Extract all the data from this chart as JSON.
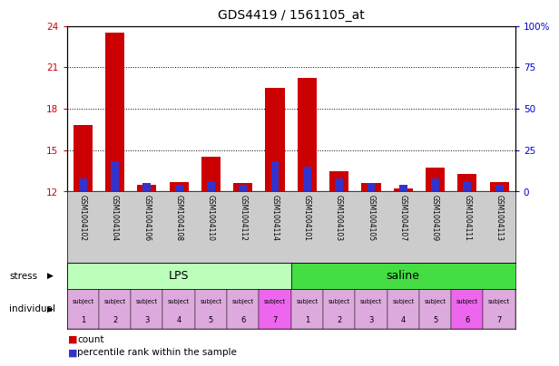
{
  "title": "GDS4419 / 1561105_at",
  "samples": [
    "GSM1004102",
    "GSM1004104",
    "GSM1004106",
    "GSM1004108",
    "GSM1004110",
    "GSM1004112",
    "GSM1004114",
    "GSM1004101",
    "GSM1004103",
    "GSM1004105",
    "GSM1004107",
    "GSM1004109",
    "GSM1004111",
    "GSM1004113"
  ],
  "count_values": [
    16.8,
    23.5,
    12.5,
    12.7,
    14.5,
    12.6,
    19.5,
    20.2,
    13.5,
    12.6,
    12.2,
    13.7,
    13.3,
    12.7
  ],
  "percentile_values": [
    8,
    18,
    5,
    4,
    6,
    4,
    18,
    15,
    8,
    5,
    4,
    8,
    6,
    4
  ],
  "ylim_left": [
    12,
    24
  ],
  "ylim_right": [
    0,
    100
  ],
  "yticks_left": [
    12,
    15,
    18,
    21,
    24
  ],
  "yticks_right": [
    0,
    25,
    50,
    75,
    100
  ],
  "bar_color_red": "#cc0000",
  "bar_color_blue": "#3333cc",
  "bar_width": 0.6,
  "blue_bar_width": 0.25,
  "stress_groups": [
    {
      "label": "LPS",
      "start": 0,
      "end": 7,
      "color": "#bbffbb"
    },
    {
      "label": "saline",
      "start": 7,
      "end": 14,
      "color": "#44dd44"
    }
  ],
  "individual_labels_top": [
    "subject",
    "subject",
    "subject",
    "subject",
    "subject",
    "subject",
    "subject",
    "subject",
    "subject",
    "subject",
    "subject",
    "subject",
    "subject",
    "subject"
  ],
  "individual_labels_bot": [
    "1",
    "2",
    "3",
    "4",
    "5",
    "6",
    "7",
    "1",
    "2",
    "3",
    "4",
    "5",
    "6",
    "7"
  ],
  "individual_colors": [
    "#ddaadd",
    "#ddaadd",
    "#ddaadd",
    "#ddaadd",
    "#ddaadd",
    "#ddaadd",
    "#ee66ee",
    "#ddaadd",
    "#ddaadd",
    "#ddaadd",
    "#ddaadd",
    "#ddaadd",
    "#ee66ee",
    "#ddaadd"
  ],
  "bg_color": "#ffffff",
  "plot_bg_color": "#ffffff",
  "grid_color": "#333333",
  "tick_color_left": "#cc0000",
  "tick_color_right": "#0000cc",
  "label_stress": "stress",
  "label_individual": "individual",
  "legend_count": "count",
  "legend_percentile": "percentile rank within the sample",
  "names_bg": "#cccccc"
}
